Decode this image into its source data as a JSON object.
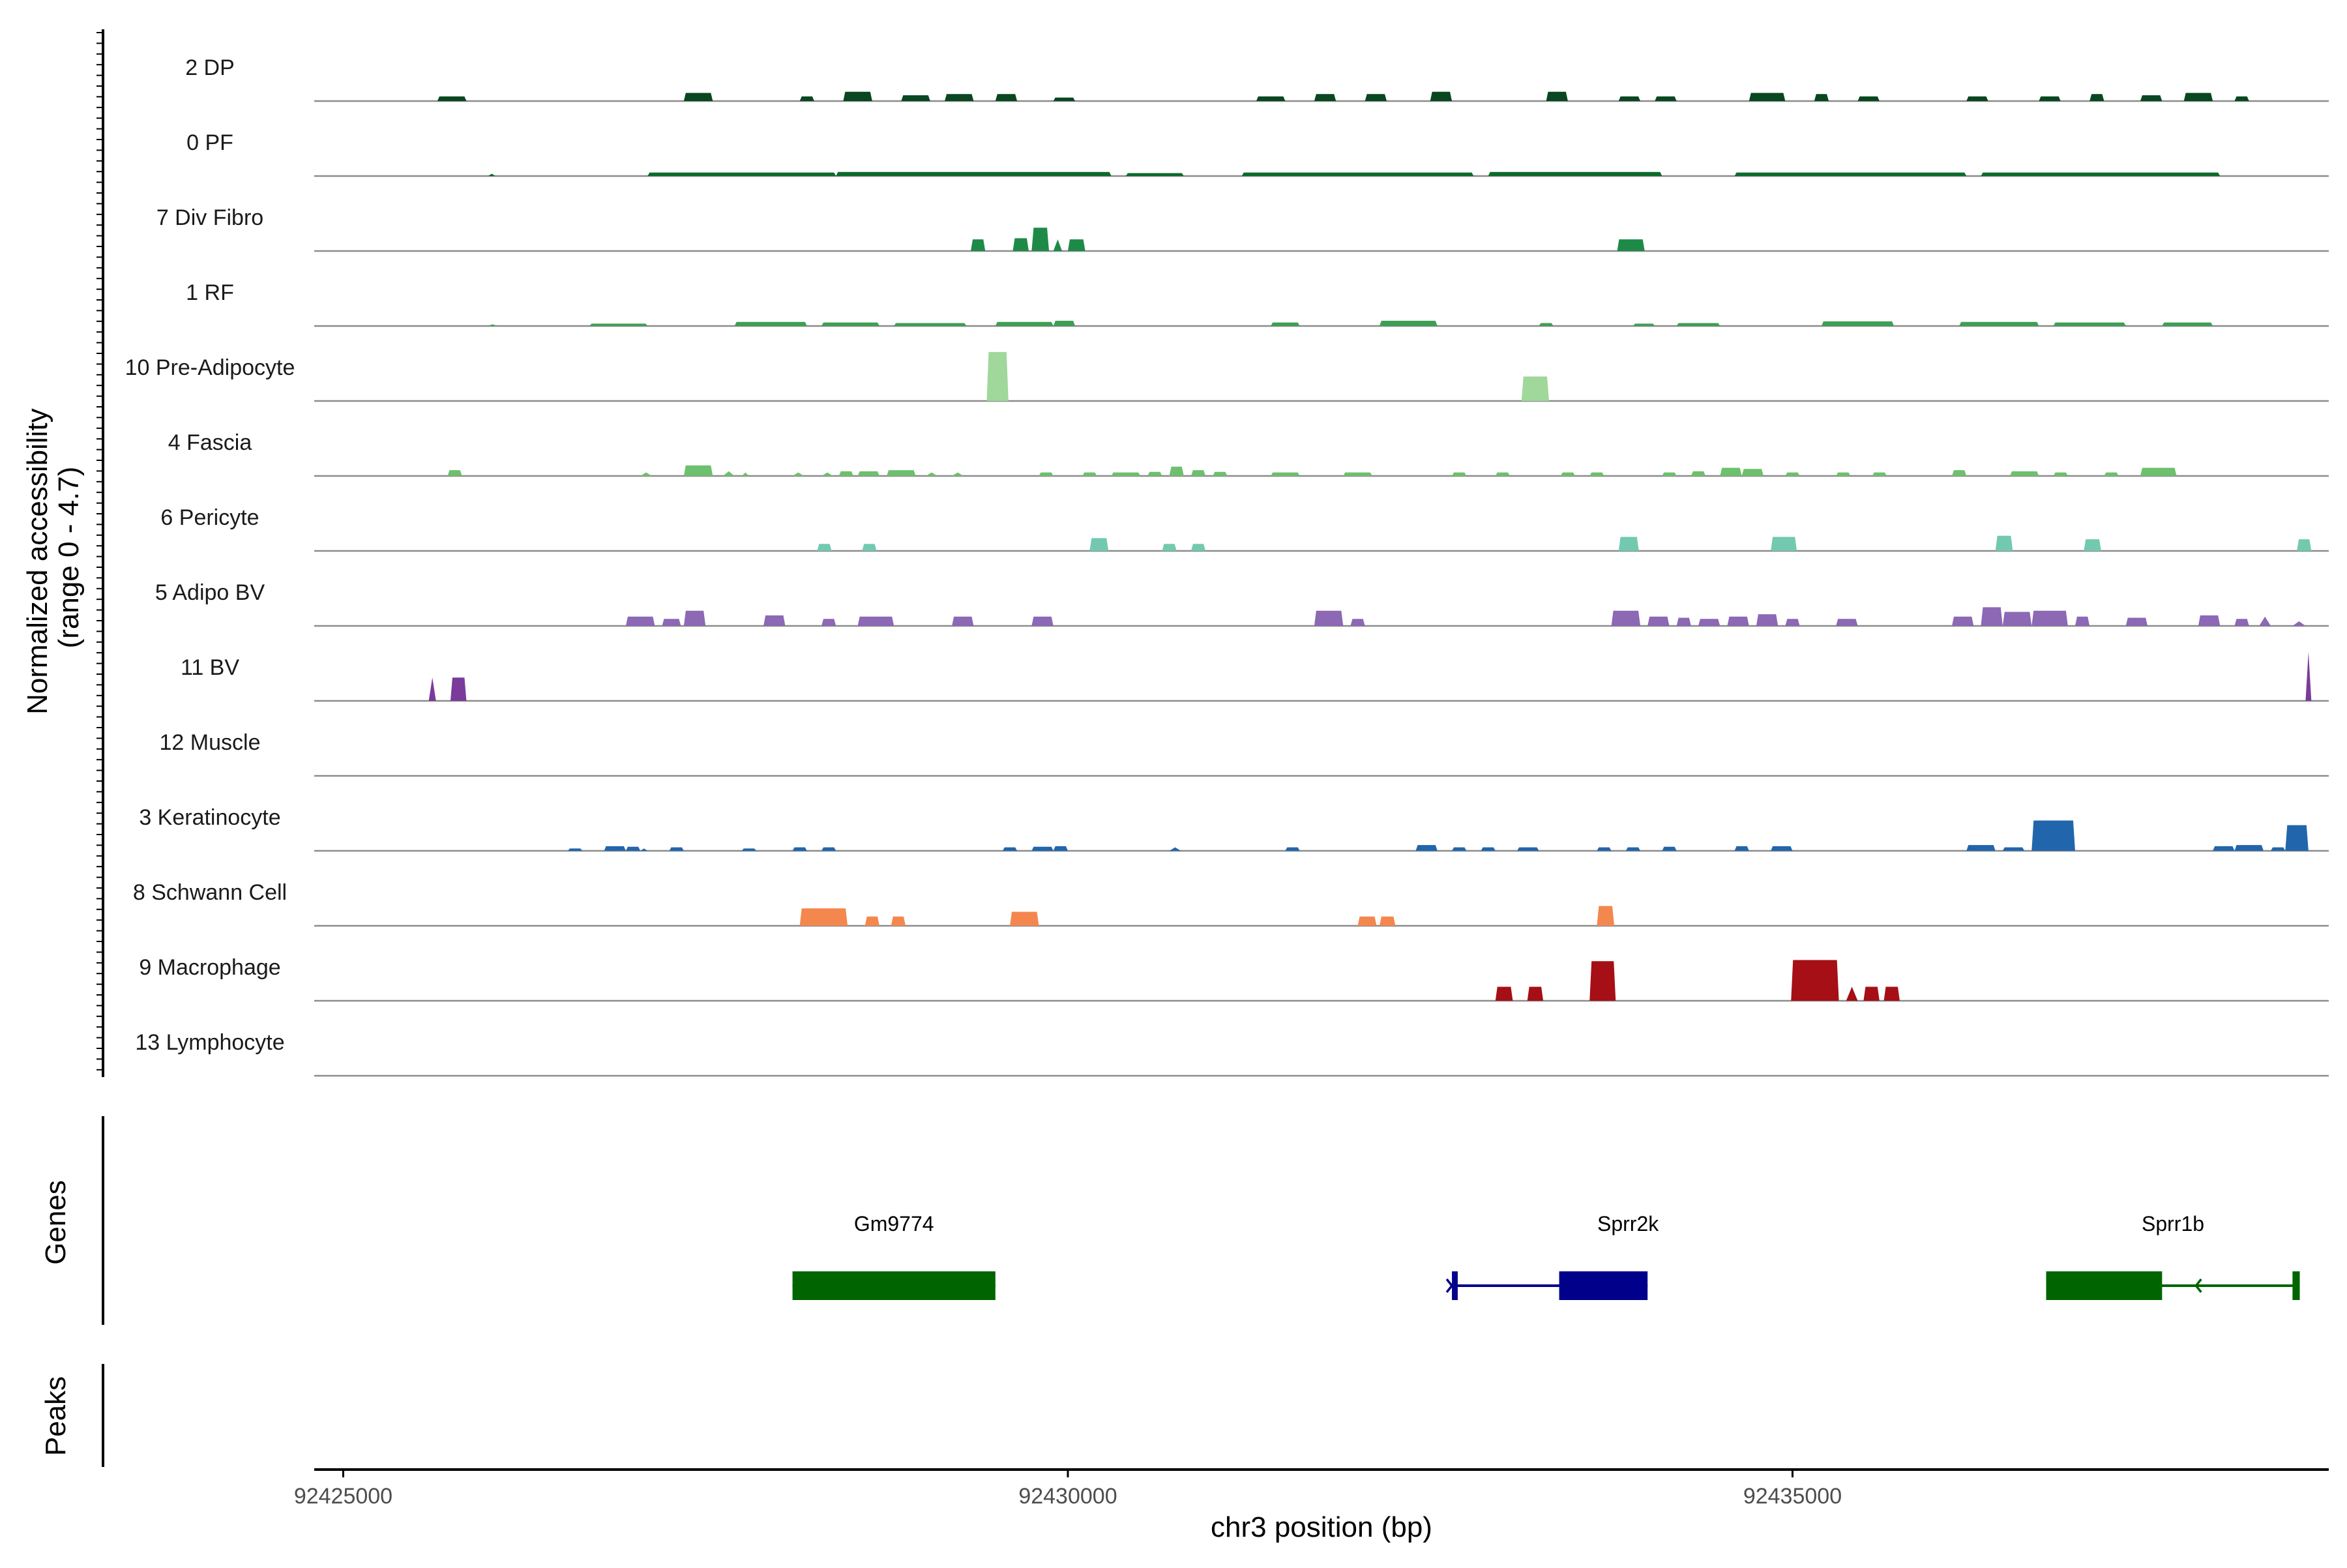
{
  "chart_data": {
    "type": "area",
    "ylabel": "Normalized accessibility\n(range 0 - 4.7)",
    "y_range": [
      0,
      4.7
    ],
    "xlabel": "chr3 position (bp)",
    "xlim": [
      92424800,
      92438700
    ],
    "x_ticks": [
      {
        "value": 92425000,
        "label": "92425000"
      },
      {
        "value": 92430000,
        "label": "92430000"
      },
      {
        "value": 92435000,
        "label": "92435000"
      }
    ],
    "tracks": [
      {
        "name": "2 DP",
        "color": "#08471f",
        "peaks": [
          [
            92425650,
            92425850,
            0.4
          ],
          [
            92427350,
            92427550,
            0.7
          ],
          [
            92428150,
            92428250,
            0.4
          ],
          [
            92428450,
            92428650,
            0.8
          ],
          [
            92428850,
            92429050,
            0.5
          ],
          [
            92429150,
            92429350,
            0.6
          ],
          [
            92429500,
            92429650,
            0.6
          ],
          [
            92429900,
            92430050,
            0.3
          ],
          [
            92431300,
            92431500,
            0.4
          ],
          [
            92431700,
            92431850,
            0.6
          ],
          [
            92432050,
            92432200,
            0.6
          ],
          [
            92432500,
            92432650,
            0.8
          ],
          [
            92433300,
            92433450,
            0.8
          ],
          [
            92433800,
            92433950,
            0.4
          ],
          [
            92434050,
            92434200,
            0.4
          ],
          [
            92434700,
            92434950,
            0.7
          ],
          [
            92435150,
            92435250,
            0.6
          ],
          [
            92435450,
            92435600,
            0.4
          ],
          [
            92436200,
            92436350,
            0.4
          ],
          [
            92436700,
            92436850,
            0.4
          ],
          [
            92437050,
            92437150,
            0.6
          ],
          [
            92437400,
            92437550,
            0.5
          ],
          [
            92437700,
            92437900,
            0.7
          ],
          [
            92438050,
            92438150,
            0.4
          ]
        ]
      },
      {
        "name": "0 PF",
        "color": "#0c6a2c",
        "peaks": [
          [
            92426000,
            92426050,
            0.2
          ],
          [
            92427100,
            92428400,
            0.3
          ],
          [
            92428400,
            92430300,
            0.35
          ],
          [
            92430400,
            92430800,
            0.25
          ],
          [
            92431200,
            92432800,
            0.3
          ],
          [
            92432900,
            92434100,
            0.35
          ],
          [
            92434600,
            92436200,
            0.3
          ],
          [
            92436300,
            92437950,
            0.3
          ]
        ]
      },
      {
        "name": "7 Div Fibro",
        "color": "#1e8a48",
        "peaks": [
          [
            92429330,
            92429430,
            1.0
          ],
          [
            92429620,
            92429730,
            1.1
          ],
          [
            92429750,
            92429870,
            2.0
          ],
          [
            92429900,
            92429960,
            1.0
          ],
          [
            92430000,
            92430120,
            1.0
          ],
          [
            92433790,
            92433980,
            1.0
          ]
        ]
      },
      {
        "name": "1 RF",
        "color": "#3e9f55",
        "peaks": [
          [
            92426000,
            92426060,
            0.15
          ],
          [
            92426700,
            92427100,
            0.2
          ],
          [
            92427700,
            92428200,
            0.35
          ],
          [
            92428300,
            92428700,
            0.3
          ],
          [
            92428800,
            92429300,
            0.25
          ],
          [
            92429500,
            92429900,
            0.35
          ],
          [
            92429900,
            92430050,
            0.45
          ],
          [
            92431400,
            92431600,
            0.3
          ],
          [
            92432150,
            92432550,
            0.45
          ],
          [
            92433250,
            92433350,
            0.25
          ],
          [
            92433900,
            92434050,
            0.2
          ],
          [
            92434200,
            92434500,
            0.25
          ],
          [
            92435200,
            92435700,
            0.4
          ],
          [
            92436150,
            92436700,
            0.35
          ],
          [
            92436800,
            92437300,
            0.3
          ],
          [
            92437550,
            92437900,
            0.3
          ]
        ]
      },
      {
        "name": "10 Pre-Adipocyte",
        "color": "#9fd89a",
        "peaks": [
          [
            92429440,
            92429590,
            4.2
          ],
          [
            92433130,
            92433320,
            2.1
          ]
        ]
      },
      {
        "name": "4 Fascia",
        "color": "#6dc06d",
        "peaks": [
          [
            92425720,
            92425820,
            0.5
          ],
          [
            92427050,
            92427130,
            0.3
          ],
          [
            92427350,
            92427550,
            0.9
          ],
          [
            92427620,
            92427700,
            0.4
          ],
          [
            92427750,
            92427800,
            0.3
          ],
          [
            92428100,
            92428180,
            0.3
          ],
          [
            92428300,
            92428380,
            0.3
          ],
          [
            92428420,
            92428520,
            0.4
          ],
          [
            92428550,
            92428700,
            0.4
          ],
          [
            92428750,
            92428950,
            0.5
          ],
          [
            92429020,
            92429100,
            0.3
          ],
          [
            92429200,
            92429280,
            0.3
          ],
          [
            92429800,
            92429900,
            0.3
          ],
          [
            92430100,
            92430200,
            0.3
          ],
          [
            92430300,
            92430500,
            0.3
          ],
          [
            92430550,
            92430650,
            0.35
          ],
          [
            92430700,
            92430800,
            0.8
          ],
          [
            92430850,
            92430950,
            0.5
          ],
          [
            92431000,
            92431100,
            0.35
          ],
          [
            92431400,
            92431600,
            0.3
          ],
          [
            92431900,
            92432100,
            0.3
          ],
          [
            92432650,
            92432750,
            0.3
          ],
          [
            92432950,
            92433050,
            0.3
          ],
          [
            92433400,
            92433500,
            0.3
          ],
          [
            92433600,
            92433700,
            0.3
          ],
          [
            92434100,
            92434200,
            0.3
          ],
          [
            92434300,
            92434400,
            0.4
          ],
          [
            92434500,
            92434650,
            0.7
          ],
          [
            92434650,
            92434800,
            0.6
          ],
          [
            92434950,
            92435050,
            0.3
          ],
          [
            92435300,
            92435400,
            0.3
          ],
          [
            92435550,
            92435650,
            0.3
          ],
          [
            92436100,
            92436200,
            0.5
          ],
          [
            92436500,
            92436700,
            0.4
          ],
          [
            92436800,
            92436900,
            0.3
          ],
          [
            92437150,
            92437250,
            0.3
          ],
          [
            92437400,
            92437650,
            0.7
          ]
        ]
      },
      {
        "name": "6 Pericyte",
        "color": "#72c9b0",
        "peaks": [
          [
            92428270,
            92428370,
            0.6
          ],
          [
            92428580,
            92428680,
            0.6
          ],
          [
            92430150,
            92430280,
            1.1
          ],
          [
            92430650,
            92430750,
            0.6
          ],
          [
            92430850,
            92430950,
            0.6
          ],
          [
            92433800,
            92433940,
            1.2
          ],
          [
            92434850,
            92435030,
            1.2
          ],
          [
            92436400,
            92436520,
            1.3
          ],
          [
            92437010,
            92437130,
            1.0
          ],
          [
            92438480,
            92438580,
            1.0
          ]
        ]
      },
      {
        "name": "5 Adipo BV",
        "color": "#8c68b5",
        "peaks": [
          [
            92426950,
            92427150,
            0.8
          ],
          [
            92427200,
            92427330,
            0.6
          ],
          [
            92427350,
            92427500,
            1.3
          ],
          [
            92427900,
            92428050,
            0.9
          ],
          [
            92428300,
            92428400,
            0.6
          ],
          [
            92428550,
            92428800,
            0.8
          ],
          [
            92429200,
            92429350,
            0.8
          ],
          [
            92429750,
            92429900,
            0.8
          ],
          [
            92431700,
            92431900,
            1.3
          ],
          [
            92431950,
            92432050,
            0.6
          ],
          [
            92433750,
            92433950,
            1.3
          ],
          [
            92434000,
            92434150,
            0.8
          ],
          [
            92434200,
            92434300,
            0.7
          ],
          [
            92434350,
            92434500,
            0.6
          ],
          [
            92434550,
            92434700,
            0.8
          ],
          [
            92434750,
            92434900,
            1.0
          ],
          [
            92434950,
            92435050,
            0.6
          ],
          [
            92435300,
            92435450,
            0.6
          ],
          [
            92436100,
            92436250,
            0.8
          ],
          [
            92436300,
            92436450,
            1.6
          ],
          [
            92436450,
            92436650,
            1.2
          ],
          [
            92436650,
            92436900,
            1.3
          ],
          [
            92436950,
            92437050,
            0.8
          ],
          [
            92437300,
            92437450,
            0.7
          ],
          [
            92437800,
            92437950,
            0.9
          ],
          [
            92438050,
            92438150,
            0.6
          ],
          [
            92438220,
            92438300,
            0.8
          ],
          [
            92438450,
            92438540,
            0.4
          ]
        ]
      },
      {
        "name": "11 BV",
        "color": "#7a3b9a",
        "peaks": [
          [
            92425590,
            92425640,
            2.0
          ],
          [
            92425740,
            92425850,
            2.0
          ],
          [
            92438540,
            92438580,
            4.2
          ]
        ]
      },
      {
        "name": "12 Muscle",
        "color": "#1f78b4",
        "peaks": []
      },
      {
        "name": "3 Keratinocyte",
        "color": "#2166ac",
        "peaks": [
          [
            92426550,
            92426650,
            0.2
          ],
          [
            92426800,
            92426950,
            0.4
          ],
          [
            92426950,
            92427050,
            0.35
          ],
          [
            92427050,
            92427100,
            0.2
          ],
          [
            92427250,
            92427350,
            0.3
          ],
          [
            92427750,
            92427850,
            0.2
          ],
          [
            92428100,
            92428200,
            0.3
          ],
          [
            92428300,
            92428400,
            0.3
          ],
          [
            92429550,
            92429650,
            0.3
          ],
          [
            92429750,
            92429900,
            0.35
          ],
          [
            92429900,
            92430000,
            0.4
          ],
          [
            92430700,
            92430780,
            0.3
          ],
          [
            92431500,
            92431600,
            0.3
          ],
          [
            92432400,
            92432550,
            0.5
          ],
          [
            92432650,
            92432750,
            0.3
          ],
          [
            92432850,
            92432950,
            0.3
          ],
          [
            92433100,
            92433250,
            0.3
          ],
          [
            92433650,
            92433750,
            0.3
          ],
          [
            92433850,
            92433950,
            0.3
          ],
          [
            92434100,
            92434200,
            0.35
          ],
          [
            92434600,
            92434700,
            0.4
          ],
          [
            92434850,
            92435000,
            0.4
          ],
          [
            92436200,
            92436400,
            0.5
          ],
          [
            92436450,
            92436600,
            0.3
          ],
          [
            92436650,
            92436950,
            2.6
          ],
          [
            92437900,
            92438050,
            0.4
          ],
          [
            92438050,
            92438250,
            0.5
          ],
          [
            92438300,
            92438400,
            0.3
          ],
          [
            92438400,
            92438560,
            2.2
          ]
        ]
      },
      {
        "name": "8 Schwann Cell",
        "color": "#f4874e",
        "peaks": [
          [
            92428150,
            92428480,
            1.5
          ],
          [
            92428600,
            92428700,
            0.8
          ],
          [
            92428780,
            92428880,
            0.8
          ],
          [
            92429600,
            92429800,
            1.2
          ],
          [
            92432000,
            92432130,
            0.8
          ],
          [
            92432150,
            92432260,
            0.8
          ],
          [
            92433650,
            92433770,
            1.7
          ]
        ]
      },
      {
        "name": "9 Macrophage",
        "color": "#a50f15",
        "peaks": [
          [
            92432950,
            92433070,
            1.2
          ],
          [
            92433170,
            92433280,
            1.2
          ],
          [
            92433600,
            92433780,
            3.4
          ],
          [
            92434990,
            92435320,
            3.5
          ],
          [
            92435370,
            92435450,
            1.2
          ],
          [
            92435490,
            92435600,
            1.2
          ],
          [
            92435630,
            92435740,
            1.2
          ]
        ]
      },
      {
        "name": "13 Lymphocyte",
        "color": "#555555",
        "peaks": []
      }
    ],
    "genes_track_label": "Genes",
    "genes": [
      {
        "name": "Gm9774",
        "strand": "",
        "color": "#006400",
        "start": 92428100,
        "end": 92429500,
        "exons": [
          [
            92428100,
            92429500
          ]
        ]
      },
      {
        "name": "Sprr2k",
        "strand": "+",
        "color": "#00008b",
        "start": 92432650,
        "end": 92434000,
        "exons": [
          [
            92432650,
            92432690
          ],
          [
            92433390,
            92434000
          ]
        ]
      },
      {
        "name": "Sprr1b",
        "strand": "-",
        "color": "#006400",
        "start": 92436750,
        "end": 92438500,
        "exons": [
          [
            92436750,
            92437550
          ],
          [
            92438450,
            92438500
          ]
        ]
      }
    ],
    "peaks_track_label": "Peaks",
    "peaks": []
  }
}
